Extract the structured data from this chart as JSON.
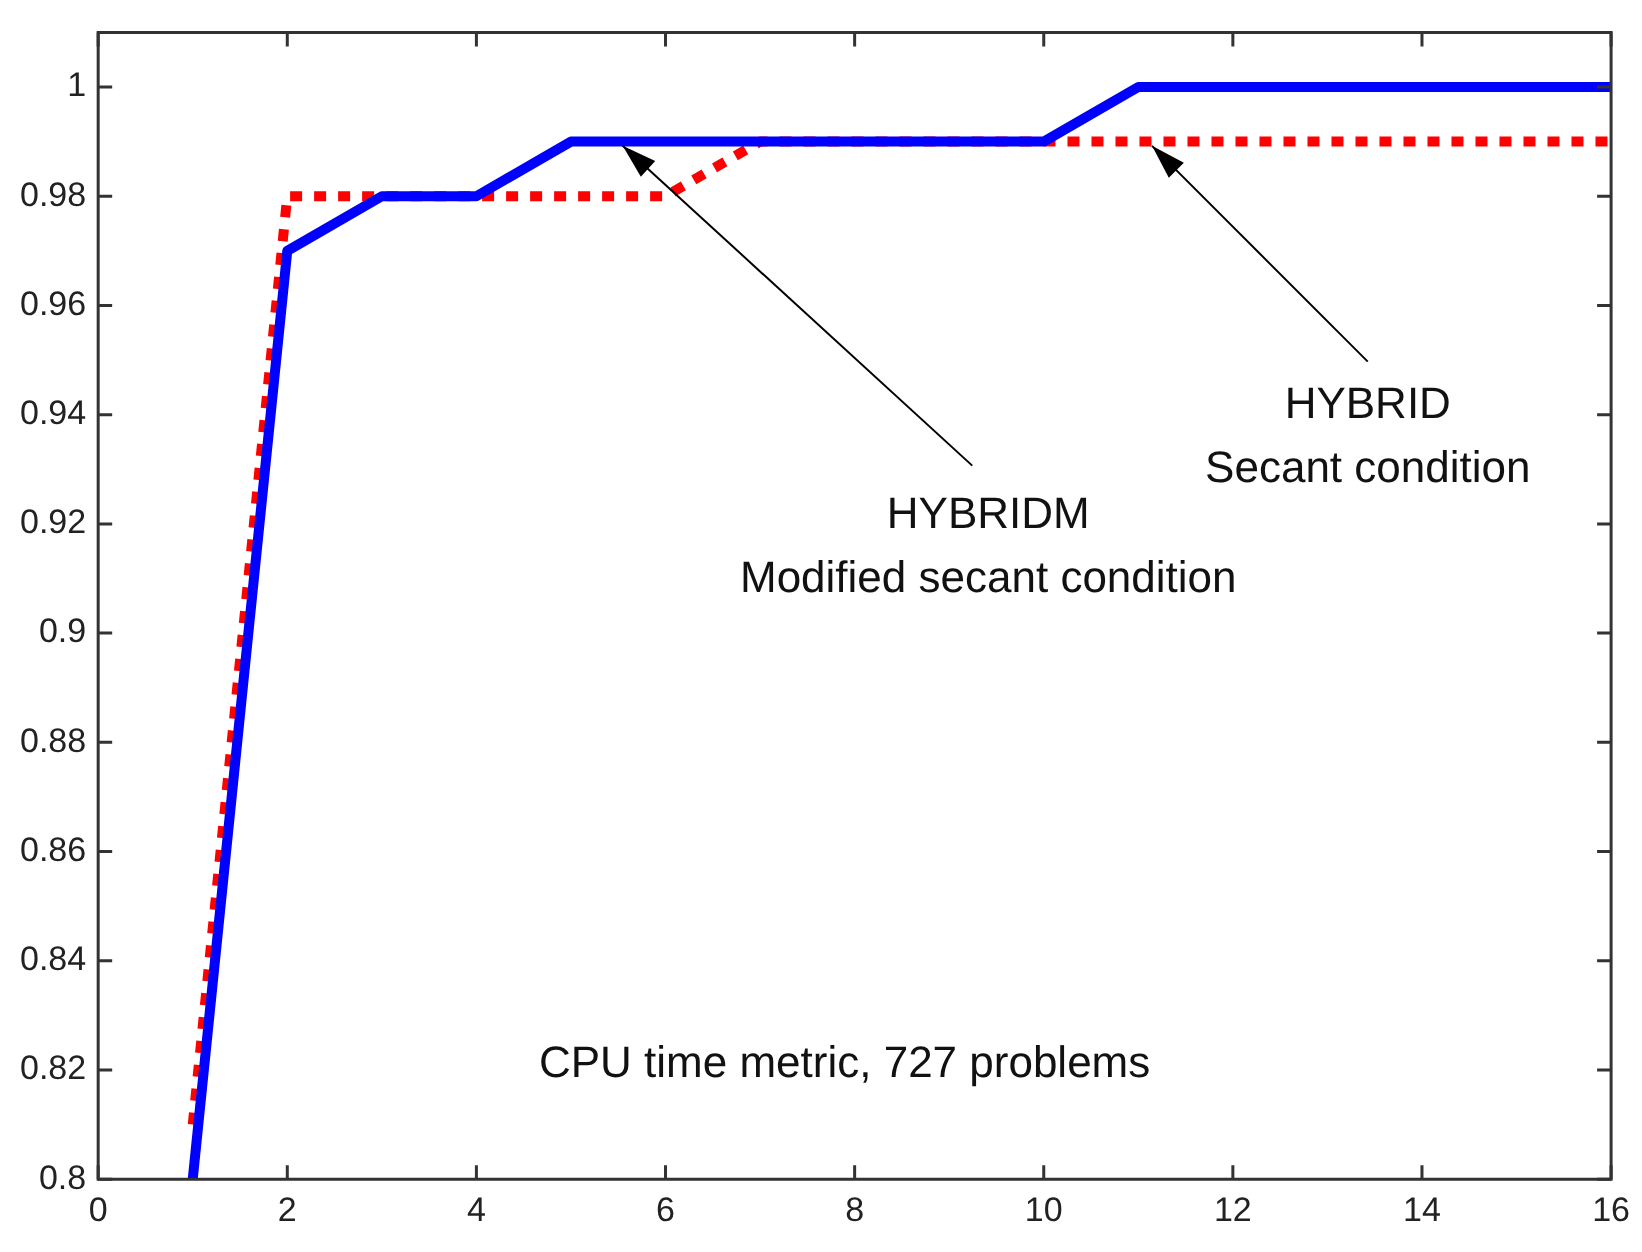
{
  "chart_data": {
    "type": "line",
    "xlim": [
      0,
      16
    ],
    "xticks": [
      0,
      2,
      4,
      6,
      8,
      10,
      12,
      14,
      16
    ],
    "ylim": [
      0.8,
      1.01
    ],
    "yticks": [
      0.8,
      0.82,
      0.84,
      0.86,
      0.88,
      0.9,
      0.92,
      0.94,
      0.96,
      0.98,
      1
    ],
    "grid": false,
    "legend": false,
    "marker": "none",
    "series": [
      {
        "x": [
          1,
          2,
          3,
          4,
          5,
          10,
          11,
          16
        ],
        "values": [
          0.8,
          0.97,
          0.98,
          0.98,
          0.99,
          0.99,
          1,
          1
        ],
        "color": "#0000ff",
        "line_style": "solid"
      },
      {
        "x": [
          1,
          2,
          6,
          7,
          16
        ],
        "values": [
          0.81,
          0.98,
          0.98,
          0.99,
          0.99
        ],
        "color": "#ff0000",
        "line_style": "dotted"
      }
    ],
    "annotations": [
      {
        "text": "HYBRIDM\nModified secant condition",
        "x": 5.5,
        "y": 0.99
      },
      {
        "text": "HYBRID\nSecant condition",
        "x": 11.1,
        "y": 0.99
      },
      "CPU time metric, 727 problems"
    ]
  }
}
